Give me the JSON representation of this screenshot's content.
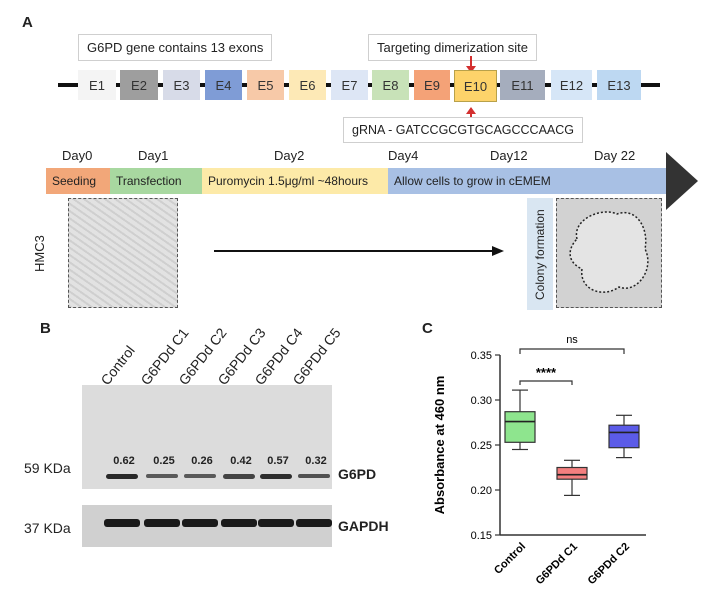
{
  "panelA": {
    "letter": "A",
    "gene_callout": "G6PD gene contains 13 exons",
    "target_callout": "Targeting dimerization site",
    "grna_callout": "gRNA - GATCCGCGTGCAGCCCAACG",
    "exons": [
      {
        "label": "E1",
        "color": "#f4f4f4"
      },
      {
        "label": "E2",
        "color": "#9e9e9e"
      },
      {
        "label": "E3",
        "color": "#d7dbe8"
      },
      {
        "label": "E4",
        "color": "#7f9cd6"
      },
      {
        "label": "E5",
        "color": "#f7c9a8"
      },
      {
        "label": "E6",
        "color": "#fde9b6"
      },
      {
        "label": "E7",
        "color": "#dde6f5"
      },
      {
        "label": "E8",
        "color": "#c8e2b8"
      },
      {
        "label": "E9",
        "color": "#f4a277"
      },
      {
        "label": "E10",
        "color": "#fdd36a"
      },
      {
        "label": "E11",
        "color": "#a5adbd"
      },
      {
        "label": "E12",
        "color": "#d6e6f7"
      },
      {
        "label": "E13",
        "color": "#bdd8f2"
      }
    ],
    "timeline": {
      "days": [
        "Day0",
        "Day1",
        "Day2",
        "Day4",
        "Day12",
        "Day 22"
      ],
      "steps": [
        {
          "label": "Seeding",
          "color": "#f2a779"
        },
        {
          "label": "Transfection",
          "color": "#a8d8a0"
        },
        {
          "label": "Puromycin 1.5μg/ml ~48hours",
          "color": "#fdeaa8"
        },
        {
          "label": "Allow cells to grow in cEMEM",
          "color": "#a8c0e4"
        }
      ]
    },
    "cell_line_label": "HMC3",
    "colony_label": "Colony formation"
  },
  "panelB": {
    "letter": "B",
    "lanes": [
      "Control",
      "G6PDd C1",
      "G6PDd C2",
      "G6PDd C3",
      "G6PDd C4",
      "G6PDd C5"
    ],
    "band_values": [
      "0.62",
      "0.25",
      "0.26",
      "0.42",
      "0.57",
      "0.32"
    ],
    "markers": {
      "upper": "59 KDa",
      "lower": "37 KDa"
    },
    "proteins": {
      "upper": "G6PD",
      "lower": "GAPDH"
    }
  },
  "panelC": {
    "letter": "C",
    "sig_top": "ns",
    "sig_inner": "****",
    "chart_data": {
      "type": "box",
      "categories": [
        "Control",
        "G6PDd C1",
        "G6PDd C2"
      ],
      "ylabel": "Absorbance at 460 nm",
      "ylim": [
        0.15,
        0.35
      ],
      "yticks": [
        "0.15",
        "0.20",
        "0.25",
        "0.30",
        "0.35"
      ],
      "series": [
        {
          "category": "Control",
          "min": 0.245,
          "q1": 0.253,
          "median": 0.276,
          "q3": 0.287,
          "max": 0.311,
          "color": "#8ee58e"
        },
        {
          "category": "G6PDd C1",
          "min": 0.194,
          "q1": 0.212,
          "median": 0.217,
          "q3": 0.225,
          "max": 0.233,
          "color": "#f47f7f"
        },
        {
          "category": "G6PDd C2",
          "min": 0.236,
          "q1": 0.247,
          "median": 0.264,
          "q3": 0.272,
          "max": 0.283,
          "color": "#5b5be8"
        }
      ]
    }
  }
}
